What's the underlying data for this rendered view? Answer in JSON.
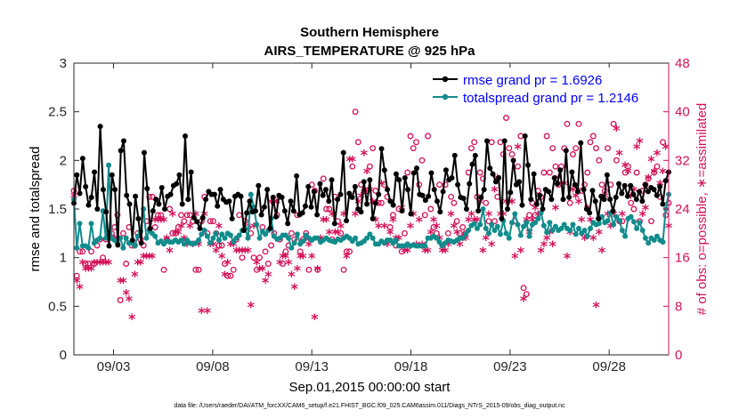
{
  "chart_data": {
    "type": "line",
    "title": "Southern Hemisphere",
    "subtitle": "AIRS_TEMPERATURE @ 925 hPa",
    "xlabel": "Sep.01,2015 00:00:00 start",
    "ylabel": "rmse and totalspread",
    "y2label": "# of obs: o=possible, ∗=assimilated",
    "footnote": "data file: /Users/raeder/DAI/ATM_forcXX/CAM6_setup/f.e21.FHIST_BGC.f09_025.CAM6assim.011/Diags_NTrS_2015-09/obs_diag_output.nc",
    "x_tick_labels": [
      "09/03",
      "09/08",
      "09/13",
      "09/18",
      "09/23",
      "09/28"
    ],
    "x_tick_days": [
      3,
      8,
      13,
      18,
      23,
      28
    ],
    "xlim": [
      1.0,
      31.0
    ],
    "ylim": [
      0,
      3
    ],
    "y_ticks": [
      "0",
      "0.5",
      "1",
      "1.5",
      "2",
      "2.5",
      "3"
    ],
    "y2lim": [
      0,
      48
    ],
    "y2_ticks": [
      "0",
      "8",
      "16",
      "24",
      "32",
      "40",
      "48"
    ],
    "legend_placement": "top-right",
    "colors": {
      "rmse": "#000000",
      "spread": "#118c8c",
      "obs": "#d41159",
      "legend_text": "#0000ff"
    },
    "series": [
      {
        "name": "rmse grand pr = 1.6926",
        "axis": "left",
        "marker": "filled-circle",
        "values": [
          1.56,
          1.85,
          1.66,
          2.02,
          1.73,
          1.54,
          1.62,
          1.88,
          1.5,
          2.35,
          1.7,
          1.47,
          1.12,
          1.85,
          1.7,
          1.13,
          2.1,
          2.2,
          1.64,
          1.55,
          1.18,
          1.63,
          1.4,
          1.15,
          2.08,
          1.71,
          1.3,
          1.48,
          1.6,
          1.55,
          1.72,
          1.5,
          1.63,
          1.65,
          1.74,
          1.76,
          1.85,
          1.55,
          2.25,
          1.6,
          1.88,
          1.41,
          1.37,
          1.3,
          1.41,
          1.6,
          1.68,
          1.65,
          1.65,
          1.53,
          1.7,
          1.6,
          1.57,
          1.58,
          1.4,
          1.63,
          1.65,
          1.63,
          1.28,
          1.46,
          1.58,
          1.47,
          1.48,
          1.74,
          1.44,
          1.52,
          1.7,
          1.3,
          1.62,
          1.42,
          1.64,
          1.62,
          1.48,
          1.35,
          1.58,
          1.48,
          1.84,
          1.44,
          1.46,
          1.53,
          1.73,
          1.52,
          1.68,
          1.44,
          1.76,
          1.64,
          1.7,
          1.58,
          1.8,
          1.35,
          1.6,
          1.65,
          2.08,
          1.38,
          1.66,
          1.62,
          1.73,
          1.5,
          1.47,
          1.78,
          1.55,
          1.8,
          1.4,
          1.56,
          1.65,
          2.12,
          1.9,
          1.7,
          1.58,
          1.54,
          1.86,
          1.8,
          1.48,
          1.82,
          1.7,
          1.45,
          1.87,
          1.92,
          1.65,
          1.64,
          1.59,
          1.63,
          1.87,
          1.7,
          1.58,
          1.47,
          1.68,
          1.9,
          1.8,
          1.82,
          2.05,
          1.75,
          1.62,
          1.61,
          1.5,
          1.76,
          1.96,
          2.05,
          1.48,
          1.62,
          1.7,
          2.2,
          1.92,
          1.86,
          1.78,
          1.82,
          1.4,
          2.2,
          1.5,
          1.67,
          2.0,
          1.75,
          1.78,
          1.54,
          2.25,
          1.95,
          1.6,
          1.86,
          1.55,
          1.64,
          1.5,
          1.7,
          1.68,
          1.6,
          1.82,
          1.76,
          1.9,
          1.6,
          2.1,
          1.62,
          1.88,
          1.75,
          1.68,
          2.18,
          1.7,
          1.5,
          1.46,
          1.69,
          1.58,
          1.4,
          1.63,
          1.6,
          1.85,
          1.6,
          1.48,
          1.62,
          1.76,
          1.66,
          1.74,
          1.63,
          1.74,
          1.65,
          1.6,
          1.68,
          1.58,
          1.75,
          1.68,
          1.72,
          1.7,
          1.64,
          1.73,
          1.55,
          1.79,
          1.88
        ]
      },
      {
        "name": "totalspread grand pr = 1.2146",
        "axis": "left",
        "marker": "filled-circle",
        "values": [
          1.6,
          1.1,
          1.35,
          1.12,
          1.12,
          1.1,
          1.35,
          1.15,
          1.18,
          1.2,
          1.48,
          1.2,
          1.95,
          1.2,
          1.18,
          1.15,
          1.2,
          1.1,
          1.2,
          1.15,
          1.15,
          1.12,
          1.22,
          1.27,
          1.5,
          1.2,
          1.28,
          1.25,
          1.22,
          1.15,
          1.17,
          1.14,
          1.17,
          1.16,
          1.16,
          1.18,
          1.16,
          1.18,
          1.14,
          1.18,
          1.15,
          1.14,
          1.15,
          1.18,
          1.24,
          1.28,
          1.22,
          1.15,
          1.2,
          1.25,
          1.18,
          1.24,
          1.2,
          1.25,
          1.23,
          1.16,
          1.2,
          1.23,
          1.28,
          1.3,
          1.2,
          1.65,
          1.52,
          1.34,
          1.2,
          1.27,
          1.24,
          1.28,
          1.4,
          1.22,
          1.19,
          1.2,
          1.23,
          1.23,
          1.2,
          1.1,
          1.15,
          1.24,
          1.14,
          1.17,
          1.23,
          1.2,
          1.18,
          1.2,
          1.2,
          1.16,
          1.18,
          1.2,
          1.18,
          1.17,
          1.16,
          1.19,
          1.18,
          1.2,
          1.22,
          1.2,
          1.17,
          1.2,
          1.14,
          1.15,
          1.17,
          1.2,
          1.24,
          1.2,
          1.14,
          1.14,
          1.17,
          1.15,
          1.18,
          1.18,
          1.15,
          1.18,
          1.12,
          1.12,
          1.12,
          1.14,
          1.12,
          1.13,
          1.12,
          1.12,
          1.12,
          1.12,
          1.2,
          1.2,
          1.22,
          1.2,
          1.16,
          1.12,
          1.15,
          1.18,
          1.17,
          1.16,
          1.18,
          1.2,
          1.2,
          1.24,
          1.28,
          1.33,
          1.35,
          1.3,
          1.34,
          1.5,
          1.3,
          1.25,
          1.34,
          1.28,
          1.32,
          1.24,
          1.38,
          1.25,
          1.2,
          1.36,
          1.45,
          1.34,
          1.23,
          1.32,
          1.36,
          1.22,
          1.34,
          1.36,
          1.4,
          1.46,
          1.33,
          1.26,
          1.36,
          1.28,
          1.32,
          1.28,
          1.3,
          1.34,
          1.3,
          1.28,
          1.34,
          1.24,
          1.3,
          1.25,
          1.28,
          1.22,
          1.3,
          1.36,
          1.34,
          1.35,
          1.42,
          1.36,
          1.38,
          1.46,
          1.34,
          1.42,
          1.38,
          1.28,
          1.22,
          1.4,
          1.42,
          1.37,
          1.3,
          1.36,
          1.28,
          1.2,
          1.15,
          1.2,
          1.18,
          1.22,
          1.18,
          1.16,
          1.5,
          1.65
        ]
      },
      {
        "name": "possible (o)",
        "axis": "right",
        "marker": "open-circle",
        "values": [
          27,
          13,
          17,
          17,
          15,
          15,
          17,
          15,
          18,
          19,
          16,
          19,
          20,
          20,
          21,
          23,
          9,
          20,
          15,
          21,
          18,
          18,
          20,
          19,
          18,
          22,
          26,
          26,
          21,
          23,
          23,
          14,
          19,
          24,
          20,
          20,
          21,
          23,
          22,
          23,
          23,
          22,
          14,
          14,
          22,
          26,
          20,
          22,
          22,
          20,
          18,
          18,
          15,
          13,
          13,
          14,
          19,
          23,
          16,
          22,
          21,
          20,
          16,
          14,
          16,
          21,
          17,
          15,
          18,
          20,
          23,
          19,
          15,
          17,
          18,
          20,
          19,
          23,
          17,
          19,
          20,
          14,
          28,
          27,
          14,
          19,
          29,
          24,
          24,
          19,
          26,
          22,
          20,
          14,
          17,
          17,
          31,
          40,
          35,
          28,
          27,
          27,
          31,
          34,
          27,
          25,
          25,
          28,
          26,
          21,
          23,
          18,
          24,
          17,
          20,
          30,
          36,
          34,
          35,
          28,
          32,
          23,
          36,
          24,
          21,
          20,
          28,
          18,
          28,
          20,
          26,
          25,
          22,
          20,
          21,
          20,
          30,
          34,
          35,
          26,
          30,
          29,
          25,
          22,
          35,
          22,
          26,
          35,
          33,
          39,
          34,
          33,
          22,
          31,
          36,
          11,
          10,
          23,
          25,
          23,
          27,
          26,
          30,
          36,
          30,
          34,
          31,
          28,
          31,
          34,
          38,
          25,
          33,
          34,
          38,
          27,
          28,
          30,
          35,
          36,
          34,
          32,
          28,
          27,
          34,
          28,
          38,
          32,
          22,
          22,
          30,
          31,
          25,
          24,
          30,
          22,
          27,
          28,
          29,
          22,
          30,
          31,
          26,
          35,
          23,
          25
        ]
      },
      {
        "name": "assimilated (∗)",
        "axis": "right",
        "marker": "asterisk",
        "values": [
          26,
          12,
          11,
          15,
          14,
          14,
          14,
          15,
          15,
          15,
          15,
          15,
          15,
          19,
          19,
          19,
          12,
          12,
          10,
          9,
          6,
          13,
          15,
          15,
          16,
          16,
          16,
          16,
          22,
          22,
          22,
          22,
          19,
          17,
          23,
          20,
          20,
          21,
          19,
          18,
          21,
          18,
          23,
          18,
          7,
          23,
          7,
          18,
          18,
          17,
          21,
          16,
          13,
          15,
          18,
          18,
          17,
          17,
          17,
          17,
          17,
          8,
          21,
          15,
          14,
          14,
          12,
          13,
          25,
          25,
          25,
          15,
          16,
          16,
          15,
          13,
          11,
          14,
          16,
          16,
          19,
          18,
          16,
          6,
          14,
          19,
          22,
          22,
          20,
          23,
          20,
          20,
          21,
          23,
          16,
          32,
          32,
          23,
          25,
          26,
          33,
          30,
          27,
          25,
          22,
          21,
          28,
          21,
          18,
          20,
          22,
          19,
          19,
          24,
          17,
          17,
          21,
          23,
          18,
          22,
          18,
          17,
          17,
          20,
          22,
          21,
          19,
          17,
          17,
          18,
          23,
          21,
          20,
          18,
          19,
          19,
          22,
          23,
          22,
          22,
          25,
          17,
          19,
          23,
          18,
          27,
          29,
          23,
          23,
          25,
          25,
          25,
          16,
          34,
          17,
          9,
          22,
          20,
          22,
          24,
          23,
          17,
          18,
          19,
          20,
          18,
          24,
          29,
          28,
          28,
          16,
          20,
          27,
          26,
          25,
          22,
          19,
          24,
          22,
          19,
          8,
          20,
          17,
          26,
          23,
          21,
          23,
          37,
          33,
          23,
          31,
          30,
          26,
          27,
          34,
          35,
          23,
          24,
          29,
          32,
          30,
          33,
          28,
          30,
          34,
          21
        ]
      }
    ]
  }
}
